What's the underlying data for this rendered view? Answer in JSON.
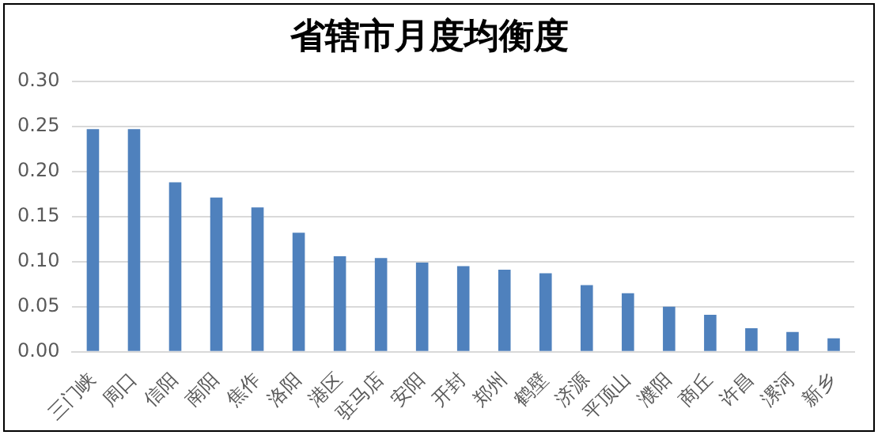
{
  "chart_data": {
    "type": "bar",
    "title": "省辖市月度均衡度",
    "categories": [
      "三门峡",
      "周口",
      "信阳",
      "南阳",
      "焦作",
      "洛阳",
      "港区",
      "驻马店",
      "安阳",
      "开封",
      "郑州",
      "鹤壁",
      "济源",
      "平顶山",
      "濮阳",
      "商丘",
      "许昌",
      "漯河",
      "新乡"
    ],
    "values": [
      0.247,
      0.247,
      0.188,
      0.171,
      0.16,
      0.132,
      0.106,
      0.104,
      0.099,
      0.095,
      0.091,
      0.087,
      0.074,
      0.065,
      0.05,
      0.041,
      0.026,
      0.022,
      0.015
    ],
    "color": "#4f81bd",
    "ylim": [
      0,
      0.3
    ],
    "yticks": [
      {
        "value": 0,
        "label": "0.00"
      },
      {
        "value": 0.05,
        "label": "0.05"
      },
      {
        "value": 0.1,
        "label": "0.10"
      },
      {
        "value": 0.15,
        "label": "0.15"
      },
      {
        "value": 0.2,
        "label": "0.20"
      },
      {
        "value": 0.25,
        "label": "0.25"
      },
      {
        "value": 0.3,
        "label": "0.30"
      }
    ],
    "grid": "y",
    "legend": false
  }
}
